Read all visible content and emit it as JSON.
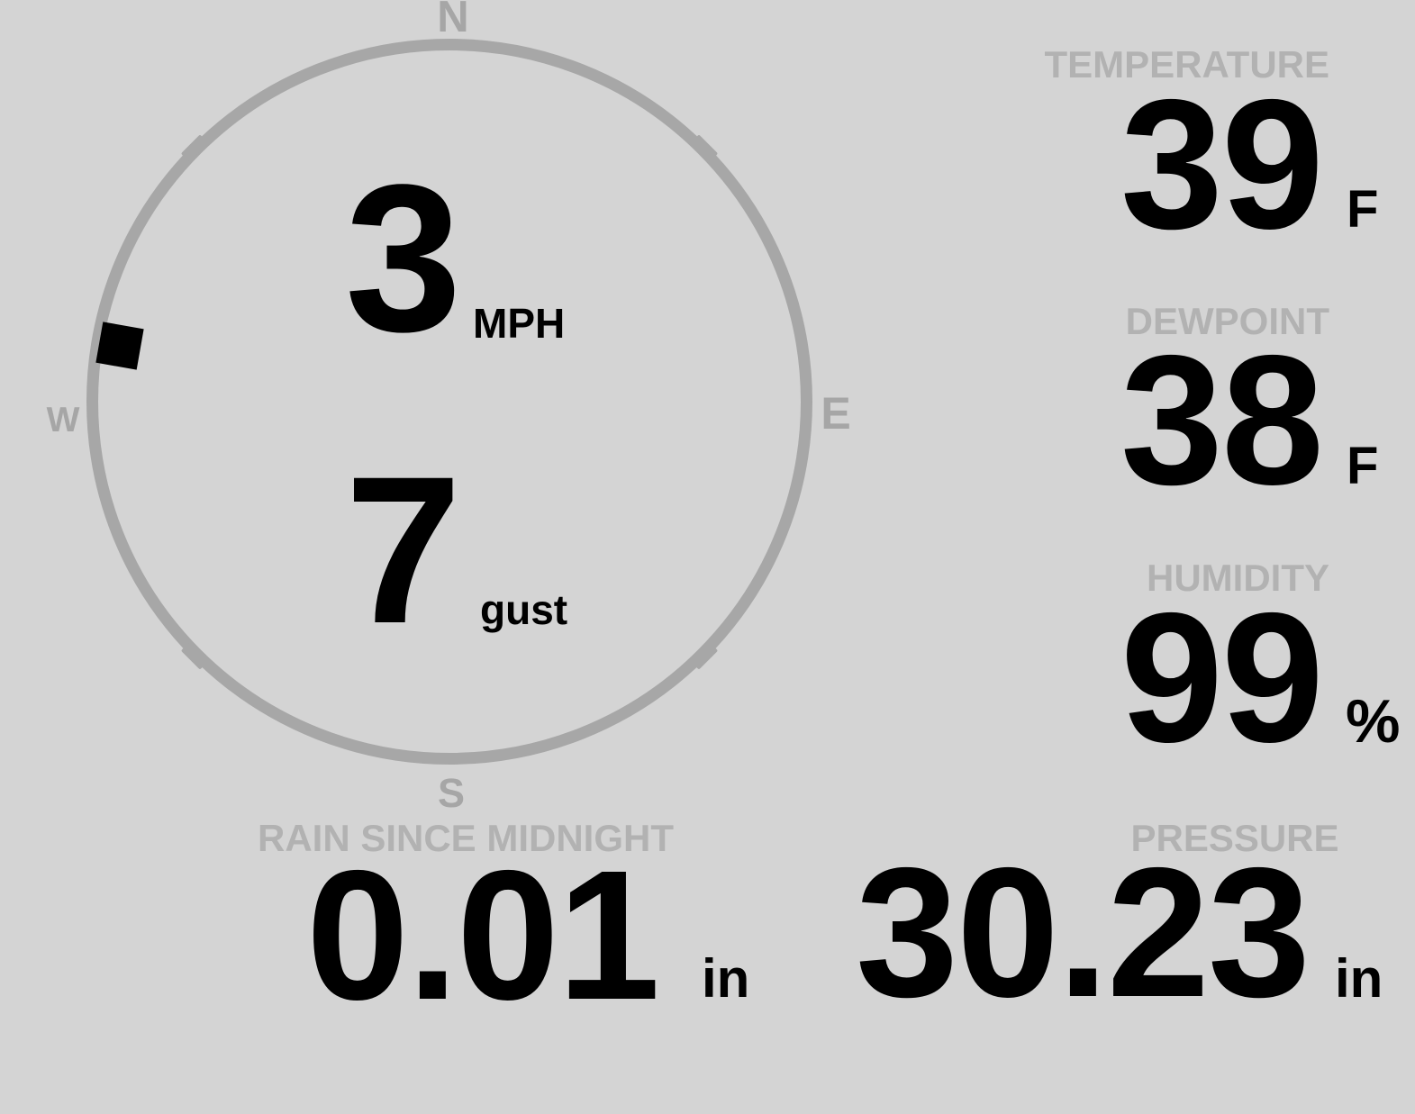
{
  "colors": {
    "bg": "#d4d4d4",
    "ring": "#a7a7a7",
    "cardinal": "#a6a6a6",
    "label": "#b2b2b2",
    "value": "#000000"
  },
  "compass": {
    "cardinals": {
      "north": "N",
      "east": "E",
      "south": "S",
      "west": "W"
    },
    "speed": {
      "value": "3",
      "unit": "MPH"
    },
    "gust": {
      "value": "7",
      "unit": "gust"
    },
    "direction_degrees": 280
  },
  "panels": {
    "temperature": {
      "label": "TEMPERATURE",
      "value": "39",
      "unit": "F"
    },
    "dewpoint": {
      "label": "DEWPOINT",
      "value": "38",
      "unit": "F"
    },
    "humidity": {
      "label": "HUMIDITY",
      "value": "99",
      "unit": "%"
    },
    "rain": {
      "label": "RAIN SINCE MIDNIGHT",
      "value": "0.01",
      "unit": "in"
    },
    "pressure": {
      "label": "PRESSURE",
      "value": "30.23",
      "unit": "in"
    }
  }
}
